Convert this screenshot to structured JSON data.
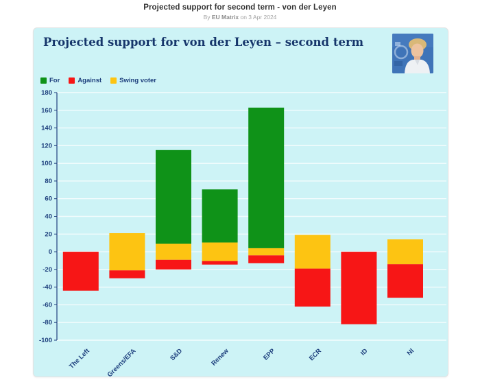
{
  "header": {
    "title": "Projected support for second term - von der Leyen",
    "byline_prefix": "By",
    "byline_author": "EU Matrix",
    "byline_suffix": "on 3 Apr 2024"
  },
  "card": {
    "title": "Projected support for von der Leyen – second term"
  },
  "legend": {
    "items": [
      {
        "label": "For",
        "color": "#0f9218"
      },
      {
        "label": "Against",
        "color": "#f71616"
      },
      {
        "label": "Swing voter",
        "color": "#fdc412"
      }
    ]
  },
  "chart_data": {
    "type": "bar",
    "stacked": true,
    "layout": "swing-band-centered-on-zero",
    "title": "Projected support for von der Leyen – second term",
    "categories": [
      "The Left",
      "Greens/EFA",
      "S&D",
      "Renew",
      "EPP",
      "ECR",
      "ID",
      "NI"
    ],
    "series": [
      {
        "name": "For",
        "color": "#0f9218",
        "values": [
          0,
          0,
          106,
          60,
          159,
          0,
          0,
          0
        ]
      },
      {
        "name": "Swing voter",
        "color": "#fdc412",
        "values": [
          0,
          42,
          18,
          21,
          8,
          38,
          0,
          28
        ]
      },
      {
        "name": "Against",
        "color": "#f71616",
        "values": [
          44,
          9,
          11,
          4,
          9,
          43,
          82,
          38
        ]
      }
    ],
    "xlabel": "",
    "ylabel": "",
    "ylim": [
      -100,
      180
    ],
    "ytick_step": 20,
    "grid": true,
    "legend_position": "top-left"
  },
  "colors": {
    "card_background": "#cdf3f6",
    "page_background": "#ffffff",
    "axis_text": "#1c3e7c",
    "axis_line": "#1e3f7d",
    "gridline": "rgba(255,255,255,0.75)",
    "title_text": "#16366b",
    "header_text": "#333333",
    "byline_text": "#a3a3a3"
  }
}
